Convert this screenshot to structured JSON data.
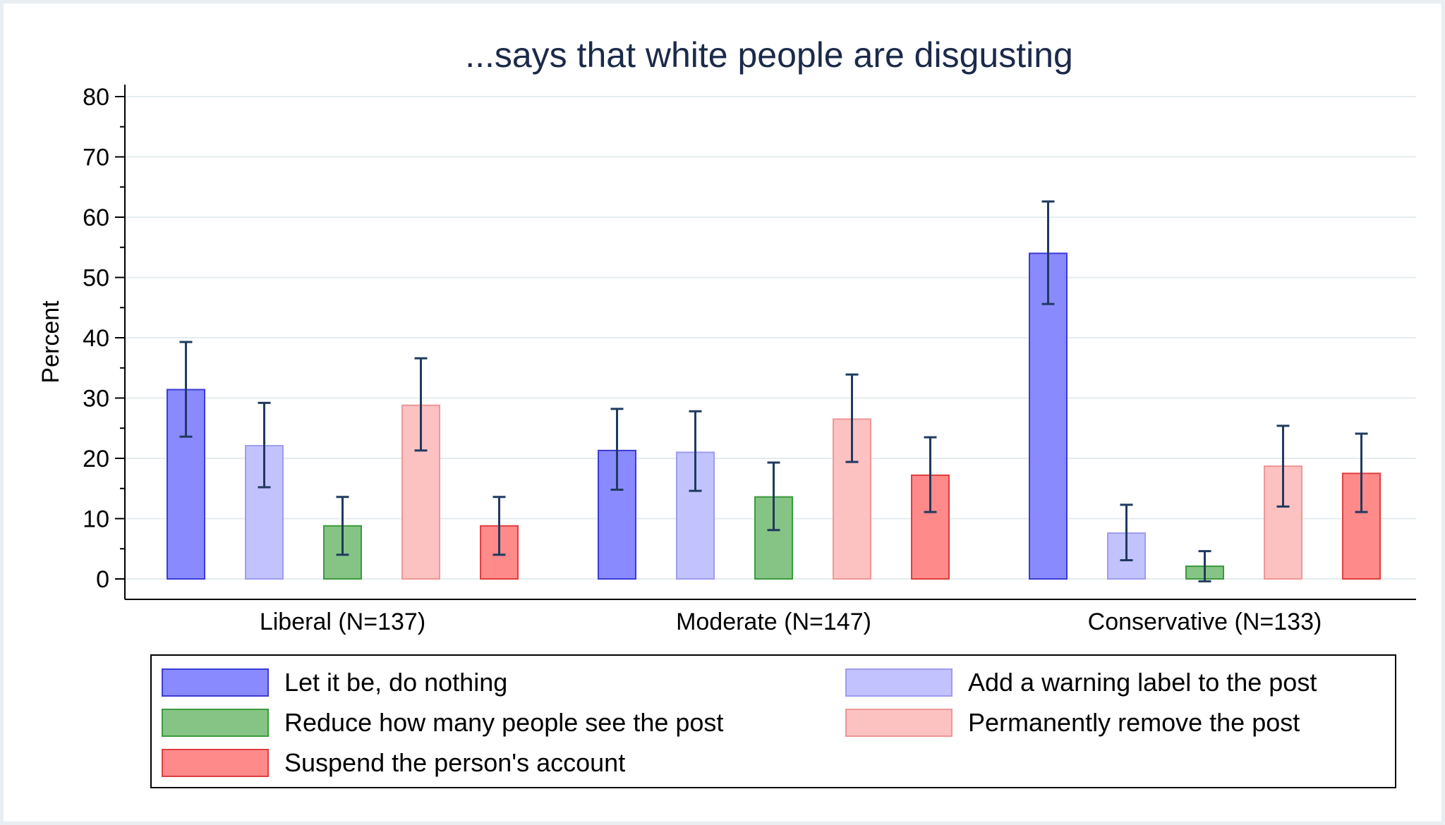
{
  "chart_data": {
    "type": "bar",
    "title": "...says that white people are disgusting",
    "ylabel": "Percent",
    "xlabel": "",
    "ylim": [
      0,
      80
    ],
    "yticks": [
      0,
      10,
      20,
      30,
      40,
      50,
      60,
      70,
      80
    ],
    "grid": true,
    "legend_position": "bottom",
    "categories": [
      "Liberal (N=137)",
      "Moderate (N=147)",
      "Conservative (N=133)"
    ],
    "series": [
      {
        "name": "Let it be, do nothing",
        "fill": "#8a8aff",
        "stroke": "#3b3bd9",
        "values": [
          31.4,
          21.3,
          54.0
        ],
        "ci_low": [
          23.6,
          14.8,
          45.6
        ],
        "ci_high": [
          39.3,
          28.2,
          62.6
        ]
      },
      {
        "name": "Add a warning label to the post",
        "fill": "#c2c2ff",
        "stroke": "#9d9df0",
        "values": [
          22.1,
          21.0,
          7.6
        ],
        "ci_low": [
          15.2,
          14.6,
          3.1
        ],
        "ci_high": [
          29.2,
          27.8,
          12.3
        ]
      },
      {
        "name": "Reduce how many people see the post",
        "fill": "#86c486",
        "stroke": "#3b9a3b",
        "values": [
          8.8,
          13.6,
          2.1
        ],
        "ci_low": [
          4.0,
          8.1,
          -0.4
        ],
        "ci_high": [
          13.6,
          19.3,
          4.6
        ]
      },
      {
        "name": "Permanently remove the post",
        "fill": "#fcc2c2",
        "stroke": "#f09696",
        "values": [
          28.8,
          26.5,
          18.7
        ],
        "ci_low": [
          21.3,
          19.4,
          12.0
        ],
        "ci_high": [
          36.6,
          33.9,
          25.4
        ]
      },
      {
        "name": "Suspend the person's account",
        "fill": "#ff8a8a",
        "stroke": "#e03e3e",
        "values": [
          8.8,
          17.2,
          17.5
        ],
        "ci_low": [
          4.0,
          11.1,
          11.1
        ],
        "ci_high": [
          13.6,
          23.5,
          24.1
        ]
      }
    ],
    "colors": {
      "title": "#1b2a4a",
      "errorbar": "#1f3a5f",
      "grid": "#e4ecef",
      "axis": "#000000"
    }
  }
}
